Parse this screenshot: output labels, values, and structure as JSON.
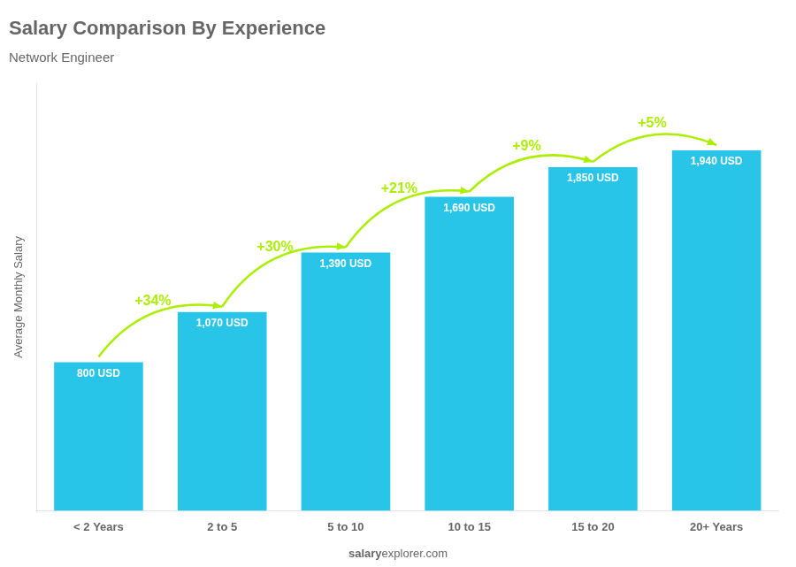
{
  "chart_data": {
    "type": "bar",
    "title": "Salary Comparison By Experience",
    "subtitle": "Network Engineer",
    "ylabel": "Average Monthly Salary",
    "categories": [
      "< 2 Years",
      "2 to 5",
      "5 to 10",
      "10 to 15",
      "15 to 20",
      "20+ Years"
    ],
    "values": [
      800,
      1070,
      1390,
      1690,
      1850,
      1940
    ],
    "value_labels": [
      "800 USD",
      "1,070 USD",
      "1,390 USD",
      "1,690 USD",
      "1,850 USD",
      "1,940 USD"
    ],
    "data_labels": true,
    "color": "#29c5e8",
    "annotations": [
      {
        "text": "+34%",
        "color": "#aaee00"
      },
      {
        "text": "+30%",
        "color": "#aaee00"
      },
      {
        "text": "+21%",
        "color": "#aaee00"
      },
      {
        "text": "+9%",
        "color": "#aaee00"
      },
      {
        "text": "+5%",
        "color": "#aaee00"
      }
    ],
    "footer": [
      "salary",
      "explorer.com"
    ],
    "ylim": [
      0,
      2300
    ],
    "grid": false,
    "tick_labels": "x"
  }
}
